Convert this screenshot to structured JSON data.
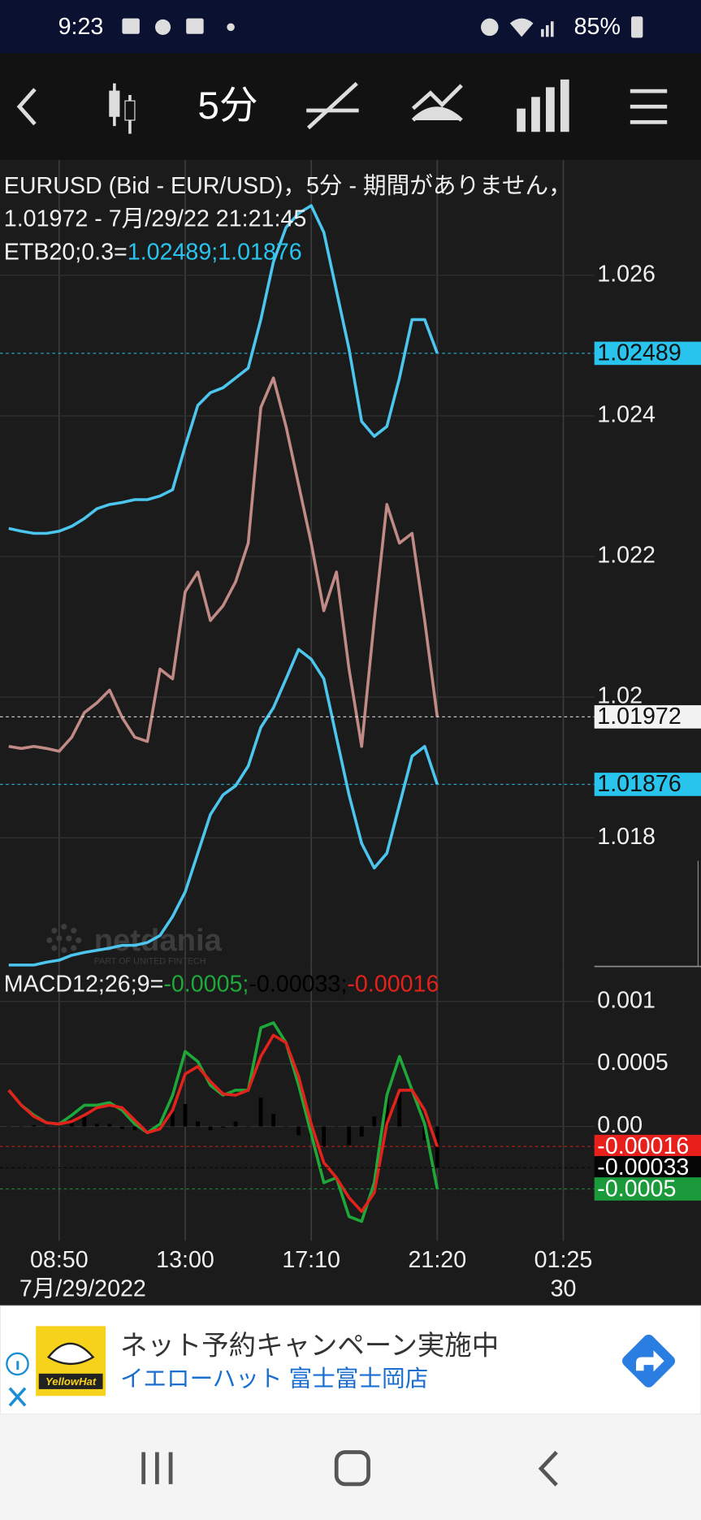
{
  "status_bar": {
    "time": "9:23",
    "battery": "85%"
  },
  "toolbar": {
    "timeframe": "5分"
  },
  "chart_data": [
    {
      "type": "line",
      "title": "EURUSD (Bid - EUR/USD)，5分 - 期間がありません，",
      "subtitle": "1.01972 - 7月/29/22 21:21:45",
      "indicator_label": "ETB20;0.3=",
      "indicator_values": "1.02489;1.01876",
      "indicator_color": "#29c4ee",
      "ylim": [
        1.01617,
        1.02764
      ],
      "yticks": [
        1.018,
        1.02,
        1.022,
        1.024,
        1.026
      ],
      "grid": true,
      "series": [
        {
          "color": "#4cc6ee",
          "values": [
            1.0224,
            1.02236,
            1.02233,
            1.02233,
            1.02236,
            1.02243,
            1.02254,
            1.02268,
            1.02274,
            1.02277,
            1.02281,
            1.02281,
            1.02286,
            1.02295,
            1.02357,
            1.02415,
            1.02433,
            1.0244,
            1.02454,
            1.02468,
            1.02537,
            1.02619,
            1.02668,
            1.02688,
            1.02699,
            1.02661,
            1.02578,
            1.02495,
            1.02392,
            1.02371,
            1.02385,
            1.02454,
            1.02537,
            1.02537,
            1.02489,
            null,
            null,
            null,
            null,
            null,
            null,
            null,
            null,
            null,
            null
          ]
        },
        {
          "color": "#4cc6ee",
          "values": [
            1.01619,
            1.01619,
            1.01619,
            1.01623,
            1.01626,
            1.01633,
            1.01637,
            1.0164,
            1.01643,
            1.01647,
            1.01647,
            1.01651,
            1.01661,
            1.01688,
            1.01723,
            1.01778,
            1.01833,
            1.01861,
            1.01874,
            1.01902,
            1.01957,
            1.01985,
            1.02026,
            1.02068,
            1.02054,
            1.02026,
            1.01943,
            1.01861,
            1.01792,
            1.01757,
            1.01778,
            1.01847,
            1.01916,
            1.0193,
            1.01876,
            null,
            null,
            null,
            null,
            null,
            null,
            null,
            null,
            null,
            null
          ]
        },
        {
          "color": "#c08a86",
          "values": [
            1.0193,
            1.01927,
            1.0193,
            1.01927,
            1.01923,
            1.01943,
            1.01978,
            1.01992,
            1.0201,
            1.01971,
            1.01943,
            1.01937,
            1.0204,
            1.02026,
            1.0215,
            1.02178,
            1.02109,
            1.0213,
            1.02164,
            1.02219,
            1.02412,
            1.02454,
            1.02385,
            1.02302,
            1.02219,
            1.02123,
            1.02178,
            1.0204,
            1.0193,
            1.02109,
            1.02274,
            1.02219,
            1.02233,
            1.02109,
            1.01972,
            null,
            null,
            null,
            null,
            null,
            null,
            null,
            null,
            null,
            null
          ]
        }
      ],
      "markers": [
        {
          "value": 1.02489,
          "color": "#29c4ee"
        },
        {
          "value": 1.01972,
          "color": "#f2f2f2"
        },
        {
          "value": 1.01876,
          "color": "#29c4ee"
        }
      ],
      "watermark": {
        "name": "netdania",
        "tagline": "PART OF UNITED FINTECH"
      }
    },
    {
      "type": "line",
      "legend_label": "MACD12;26;9=",
      "ylim": [
        -0.000915,
        0.00128
      ],
      "yticks": [
        0.001,
        0.0005,
        {
          "value": 0,
          "label": "0.00"
        }
      ],
      "grid": true,
      "categories": [
        null,
        null,
        null,
        null,
        "08:50",
        null,
        null,
        null,
        null,
        null,
        null,
        null,
        null,
        null,
        "13:00",
        null,
        null,
        null,
        null,
        null,
        null,
        null,
        null,
        null,
        "17:10",
        null,
        null,
        null,
        null,
        null,
        null,
        null,
        null,
        null,
        "21:20",
        null,
        null,
        null,
        null,
        null,
        null,
        null,
        null,
        null,
        "01:25"
      ],
      "date_labels": [
        null,
        null,
        null,
        null,
        "7月/29/2022",
        null,
        null,
        null,
        null,
        null,
        null,
        null,
        null,
        null,
        null,
        null,
        null,
        null,
        null,
        null,
        null,
        null,
        null,
        null,
        null,
        null,
        null,
        null,
        null,
        null,
        null,
        null,
        null,
        null,
        null,
        null,
        null,
        null,
        null,
        null,
        null,
        null,
        null,
        null,
        "30"
      ],
      "series": [
        {
          "name": "-0.0005;",
          "color": "#1fa83a",
          "values": [
            0.00029,
            0.00017,
            9e-05,
            3e-05,
            2e-05,
            9e-05,
            0.00017,
            0.00017,
            0.00019,
            0.00013,
            2e-05,
            -5e-05,
            2e-05,
            0.00025,
            0.0006,
            0.00052,
            0.00033,
            0.00025,
            0.00029,
            0.00029,
            0.00079,
            0.00083,
            0.00067,
            0.00033,
            -6e-05,
            -0.00045,
            -0.00041,
            -0.00072,
            -0.00076,
            -0.00045,
            0.00025,
            0.00056,
            0.00029,
            2e-05,
            -0.0005,
            null,
            null,
            null,
            null,
            null,
            null,
            null,
            null,
            null,
            null
          ]
        },
        {
          "name": "-0.00033;",
          "color": "#000000",
          "type": "bar",
          "values": [
            0,
            0,
            1e-05,
            0,
            0,
            5e-05,
            8e-05,
            2e-05,
            2e-05,
            -2e-05,
            -3e-05,
            0,
            4e-05,
            0.00012,
            0.00018,
            4e-05,
            -3e-05,
            -1e-05,
            4e-05,
            0,
            0.00023,
            0.0001,
            0,
            -7e-05,
            -8e-05,
            -0.00016,
            0,
            -0.00015,
            -8e-05,
            8e-05,
            0.00023,
            0.00027,
            0,
            -0.00011,
            -0.00033,
            null,
            null,
            null,
            null,
            null,
            null,
            null,
            null,
            null,
            null
          ]
        },
        {
          "name": "-0.00016",
          "color": "#e3221b",
          "values": [
            0.00029,
            0.00017,
            8e-05,
            3e-05,
            2e-05,
            4e-05,
            9e-05,
            0.00015,
            0.00017,
            0.00015,
            5e-05,
            -5e-05,
            -2e-05,
            0.00013,
            0.00042,
            0.00048,
            0.00036,
            0.00026,
            0.00025,
            0.00029,
            0.00056,
            0.00073,
            0.00067,
            0.0004,
            2e-05,
            -0.00029,
            -0.00041,
            -0.00057,
            -0.00068,
            -0.00053,
            2e-05,
            0.00029,
            0.00029,
            0.00013,
            -0.00016,
            null,
            null,
            null,
            null,
            null,
            null,
            null,
            null,
            null,
            null
          ]
        }
      ],
      "markers": [
        {
          "value": -0.00016,
          "color": "#e8201c"
        },
        {
          "value": -0.00033,
          "color": "#050505"
        },
        {
          "value": -0.0005,
          "color": "#1a9a3a"
        }
      ]
    }
  ],
  "ad": {
    "logo_text": "YellowHat",
    "headline": "ネット予約キャンペーン実施中",
    "advertiser": "イエローハット 富士富士岡店"
  }
}
